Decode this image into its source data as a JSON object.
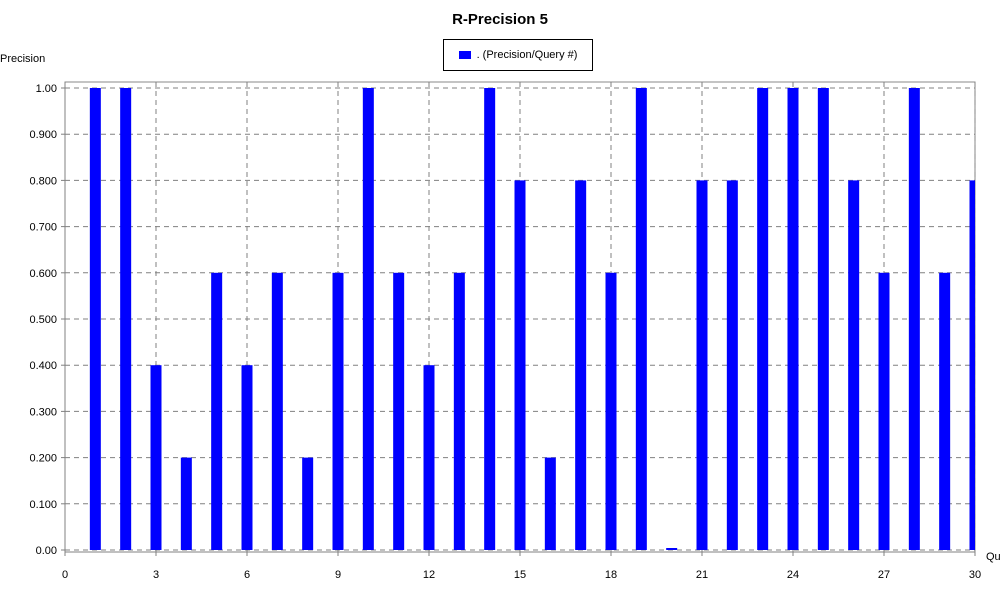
{
  "chart_data": {
    "type": "bar",
    "title": "R-Precision 5",
    "ylabel": "Precision",
    "xlabel": "Qu",
    "legend": {
      "label": ". (Precision/Query #)",
      "placement": "top-center"
    },
    "color": "#0000ff",
    "xlim": [
      0,
      30
    ],
    "ylim": [
      0,
      1.0
    ],
    "grid": true,
    "xticks": [
      0,
      3,
      6,
      9,
      12,
      15,
      18,
      21,
      24,
      27,
      30
    ],
    "yticks": [
      "0.00",
      "0.100",
      "0.200",
      "0.300",
      "0.400",
      "0.500",
      "0.600",
      "0.700",
      "0.800",
      "0.900",
      "1.00"
    ],
    "x": [
      1,
      2,
      3,
      4,
      5,
      6,
      7,
      8,
      9,
      10,
      11,
      12,
      13,
      14,
      15,
      16,
      17,
      18,
      19,
      20,
      21,
      22,
      23,
      24,
      25,
      26,
      27,
      28,
      29,
      30
    ],
    "values": [
      1.0,
      1.0,
      0.4,
      0.2,
      0.6,
      0.4,
      0.6,
      0.2,
      0.6,
      1.0,
      0.6,
      0.4,
      0.6,
      1.0,
      0.8,
      0.2,
      0.8,
      0.6,
      1.0,
      0.0,
      0.8,
      0.8,
      1.0,
      1.0,
      1.0,
      0.8,
      0.6,
      1.0,
      0.6,
      0.8
    ]
  }
}
